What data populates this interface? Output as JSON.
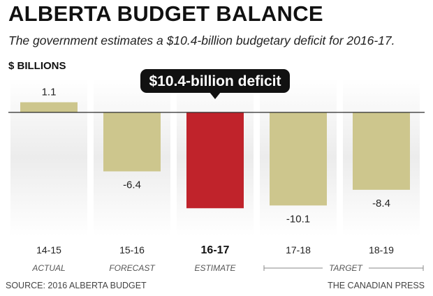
{
  "colors": {
    "bar": "#cdc68d",
    "highlight": "#c0232b",
    "column_bg": "#ececec",
    "axis": "#2a2a2a",
    "callout_bg": "#111111"
  },
  "credit": "THE CANADIAN PRESS",
  "chart_data": {
    "type": "bar",
    "title": "ALBERTA BUDGET BALANCE",
    "subtitle": "The government estimates a $10.4-billion budgetary deficit for 2016-17.",
    "ylabel": "$ BILLIONS",
    "source": "SOURCE: 2016 ALBERTA BUDGET",
    "categories": [
      "14-15",
      "15-16",
      "16-17",
      "17-18",
      "18-19"
    ],
    "phases": [
      "ACTUAL",
      "FORECAST",
      "ESTIMATE",
      "TARGET",
      "TARGET"
    ],
    "values": [
      1.1,
      -6.4,
      -10.4,
      -10.1,
      -8.4
    ],
    "value_labels": [
      "1.1",
      "-6.4",
      "",
      "-10.1",
      "-8.4"
    ],
    "highlight_index": 2,
    "callout": "$10.4-billion deficit",
    "ylim": [
      -12,
      1.5
    ],
    "grid": false,
    "legend": "none"
  }
}
